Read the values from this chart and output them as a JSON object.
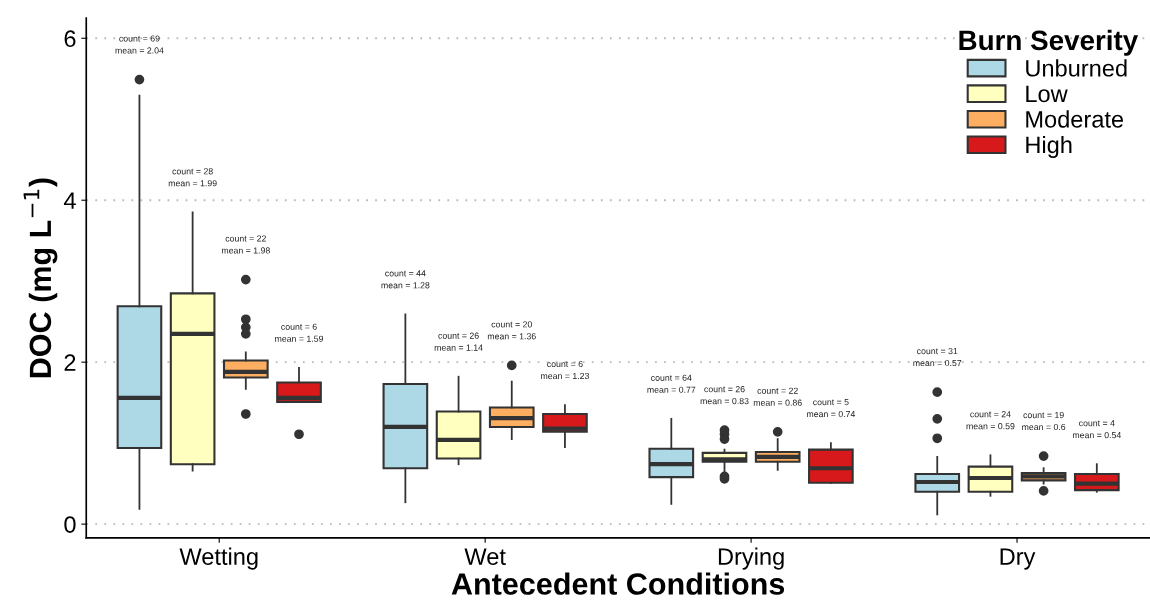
{
  "chart_data": {
    "type": "box",
    "xlabel": "Antecedent Conditions",
    "ylabel": "DOC (mg L$^{−1}$)",
    "legend_title": "Burn Severity",
    "legend": "top right",
    "grid": "y",
    "categories": [
      "Wetting",
      "Wet",
      "Drying",
      "Dry"
    ],
    "ylim": [
      -0.17,
      6.25
    ],
    "yticks": [
      0,
      2,
      4,
      6
    ],
    "series": [
      {
        "name": "Unburned",
        "color": "#add8e6",
        "value_labels": [
          "count = 69\nmean = 2.04",
          "count = 44\nmean = 1.28",
          "count = 64\nmean = 0.77",
          "count = 31\nmean = 0.57"
        ],
        "boxes": [
          {
            "low": 0.19,
            "q1": 0.94,
            "median": 1.56,
            "q3": 2.69,
            "high": 5.29,
            "outliers": [
              5.49
            ]
          },
          {
            "low": 0.27,
            "q1": 0.69,
            "median": 1.2,
            "q3": 1.73,
            "high": 2.59
          },
          {
            "low": 0.25,
            "q1": 0.58,
            "median": 0.74,
            "q3": 0.93,
            "high": 1.3
          },
          {
            "low": 0.12,
            "q1": 0.4,
            "median": 0.52,
            "q3": 0.62,
            "high": 0.83,
            "outliers": [
              1.63,
              1.3,
              1.06
            ]
          }
        ]
      },
      {
        "name": "Low",
        "color": "#ffffc0",
        "value_labels": [
          "count = 28\nmean = 1.99",
          "count = 26\nmean = 1.14",
          "count = 26\nmean = 0.83",
          "count = 24\nmean = 0.59"
        ],
        "boxes": [
          {
            "low": 0.66,
            "q1": 0.74,
            "median": 2.35,
            "q3": 2.85,
            "high": 3.85
          },
          {
            "low": 0.74,
            "q1": 0.81,
            "median": 1.04,
            "q3": 1.39,
            "high": 1.82
          },
          {
            "low": 0.63,
            "q1": 0.77,
            "median": 0.8,
            "q3": 0.88,
            "high": 0.92,
            "outliers": [
              1.16,
              1.11,
              1.05,
              0.59,
              0.56
            ]
          },
          {
            "low": 0.35,
            "q1": 0.4,
            "median": 0.57,
            "q3": 0.71,
            "high": 0.85
          }
        ]
      },
      {
        "name": "Moderate",
        "color": "#fdae61",
        "value_labels": [
          "count = 22\nmean = 1.98",
          "count = 20\nmean = 1.36",
          "count = 22\nmean = 0.86",
          "count = 19\nmean = 0.6"
        ],
        "boxes": [
          {
            "low": 1.67,
            "q1": 1.81,
            "median": 1.88,
            "q3": 2.02,
            "high": 2.12,
            "outliers": [
              3.02,
              2.53,
              2.43,
              2.35,
              1.36
            ]
          },
          {
            "low": 1.05,
            "q1": 1.2,
            "median": 1.31,
            "q3": 1.44,
            "high": 1.76,
            "outliers": [
              1.96
            ]
          },
          {
            "low": 0.67,
            "q1": 0.77,
            "median": 0.83,
            "q3": 0.89,
            "high": 1.05,
            "outliers": [
              1.14
            ]
          },
          {
            "low": 0.5,
            "q1": 0.54,
            "median": 0.59,
            "q3": 0.63,
            "high": 0.69,
            "outliers": [
              0.84,
              0.41
            ]
          }
        ]
      },
      {
        "name": "High",
        "color": "#d7191c",
        "value_labels": [
          "count = 6\nmean = 1.59",
          "count = 6\nmean = 1.23",
          "count = 5\nmean = 0.74",
          "count = 4\nmean = 0.54"
        ],
        "boxes": [
          {
            "low": 1.51,
            "q1": 1.51,
            "median": 1.56,
            "q3": 1.75,
            "high": 1.93,
            "outliers": [
              1.11
            ]
          },
          {
            "low": 0.95,
            "q1": 1.14,
            "median": 1.18,
            "q3": 1.36,
            "high": 1.47
          },
          {
            "low": 0.51,
            "q1": 0.51,
            "median": 0.69,
            "q3": 0.92,
            "high": 1.0
          },
          {
            "low": 0.4,
            "q1": 0.42,
            "median": 0.5,
            "q3": 0.62,
            "high": 0.74
          }
        ]
      }
    ]
  }
}
